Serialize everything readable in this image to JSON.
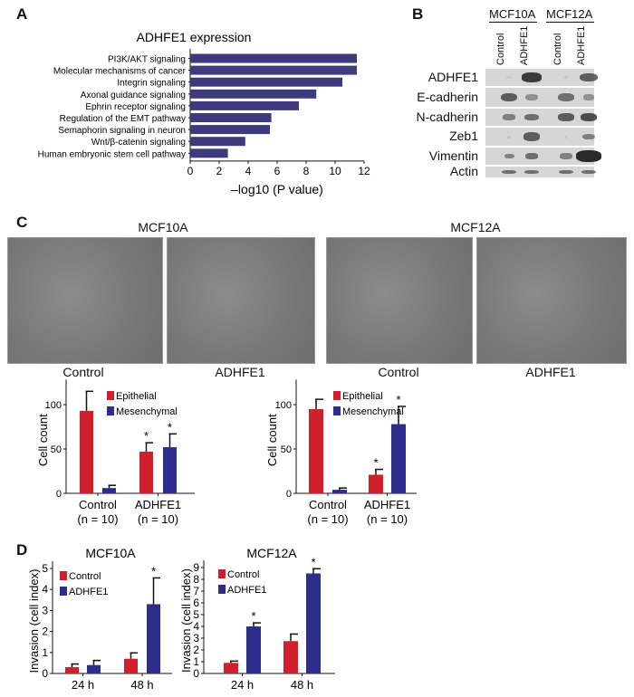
{
  "panels": {
    "a": "A",
    "b": "B",
    "c": "C",
    "d": "D"
  },
  "colors": {
    "navy_bar": "#3d3b7c",
    "epithelial": "#d0202e",
    "mesenchymal": "#2d2d8c"
  },
  "blot": {
    "groups": [
      "MCF10A",
      "MCF12A"
    ],
    "columns": [
      "Control",
      "ADHFE1",
      "Control",
      "ADHFE1"
    ],
    "rows": [
      "ADHFE1",
      "E-cadherin",
      "N-cadherin",
      "Zeb1",
      "Vimentin",
      "Actin"
    ]
  },
  "micrographs": {
    "titles": [
      "MCF10A",
      "MCF12A"
    ],
    "captions": [
      "Control",
      "ADHFE1",
      "Control",
      "ADHFE1"
    ]
  },
  "chart_data": [
    {
      "type": "bar",
      "orientation": "horizontal",
      "title": "ADHFE1 expression",
      "xlabel": "–log10 (P value)",
      "xlim": [
        0,
        12
      ],
      "xticks": [
        0,
        2,
        4,
        6,
        8,
        10,
        12
      ],
      "categories": [
        "PI3K/AKT signaling",
        "Molecular mechanisms of cancer",
        "Integrin signaling",
        "Axonal guidance signaling",
        "Ephrin receptor signaling",
        "Regulation of the EMT pathway",
        "Semaphorin signaling in neuron",
        "Wnt/β-catenin signaling",
        "Human embryonic stem cell pathway"
      ],
      "values": [
        11.5,
        11.5,
        10.5,
        8.7,
        7.5,
        5.6,
        5.5,
        3.8,
        2.6
      ]
    },
    {
      "type": "bar",
      "title": "",
      "ylabel": "Cell count",
      "ylim": [
        0,
        120
      ],
      "yticks": [
        0,
        50,
        100
      ],
      "categories": [
        "Control",
        "ADHFE1"
      ],
      "category_sub": [
        "(n = 10)",
        "(n = 10)"
      ],
      "legend": "top-right",
      "series": [
        {
          "name": "Epithelial",
          "values": [
            93,
            47
          ],
          "errors": [
            22,
            10
          ],
          "significant": [
            false,
            true
          ]
        },
        {
          "name": "Mesenchymal",
          "values": [
            6,
            52
          ],
          "errors": [
            3,
            15
          ],
          "significant": [
            false,
            true
          ]
        }
      ]
    },
    {
      "type": "bar",
      "title": "",
      "ylabel": "Cell count",
      "ylim": [
        0,
        120
      ],
      "yticks": [
        0,
        50,
        100
      ],
      "categories": [
        "Control",
        "ADHFE1"
      ],
      "category_sub": [
        "(n = 10)",
        "(n = 10)"
      ],
      "legend": "top-right",
      "series": [
        {
          "name": "Epithelial",
          "values": [
            95,
            21
          ],
          "errors": [
            11,
            6
          ],
          "significant": [
            false,
            true
          ]
        },
        {
          "name": "Mesenchymal",
          "values": [
            4,
            78
          ],
          "errors": [
            2,
            20
          ],
          "significant": [
            false,
            true
          ]
        }
      ]
    },
    {
      "type": "bar",
      "title": "MCF10A",
      "ylabel": "Invasion (cell index)",
      "ylim": [
        0,
        5
      ],
      "yticks": [
        0,
        1,
        2,
        3,
        4,
        5
      ],
      "categories": [
        "24 h",
        "48 h"
      ],
      "legend": "top-left",
      "series": [
        {
          "name": "Control",
          "values": [
            0.3,
            0.7
          ],
          "errors": [
            0.15,
            0.28
          ],
          "significant": [
            false,
            false
          ]
        },
        {
          "name": "ADHFE1",
          "values": [
            0.4,
            3.3
          ],
          "errors": [
            0.22,
            1.25
          ],
          "significant": [
            false,
            true
          ]
        }
      ]
    },
    {
      "type": "bar",
      "title": "MCF12A",
      "ylabel": "Invasion (cell index)",
      "ylim": [
        0,
        9
      ],
      "yticks": [
        0,
        1,
        2,
        3,
        4,
        5,
        6,
        7,
        8,
        9
      ],
      "categories": [
        "24 h",
        "48 h"
      ],
      "legend": "top-left",
      "series": [
        {
          "name": "Control",
          "values": [
            0.9,
            2.75
          ],
          "errors": [
            0.15,
            0.6
          ],
          "significant": [
            false,
            false
          ]
        },
        {
          "name": "ADHFE1",
          "values": [
            4.0,
            8.5
          ],
          "errors": [
            0.3,
            0.4
          ],
          "significant": [
            true,
            true
          ]
        }
      ]
    }
  ]
}
